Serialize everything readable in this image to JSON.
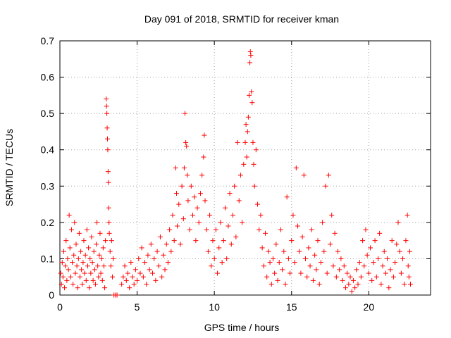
{
  "chart_data": {
    "type": "scatter",
    "title": "Day 091 of 2018, SRMTID for receiver kman",
    "xlabel": "GPS time / hours",
    "ylabel": "SRMTID / TECUs",
    "xlim": [
      0,
      24
    ],
    "ylim": [
      0,
      0.7
    ],
    "xticks": [
      0,
      5,
      10,
      15,
      20
    ],
    "yticks": [
      0,
      0.1,
      0.2,
      0.3,
      0.4,
      0.5,
      0.6,
      0.7
    ],
    "xtick_labels": [
      "0",
      "5",
      "10",
      "15",
      "20"
    ],
    "ytick_labels": [
      "0",
      "0.1",
      "0.2",
      "0.3",
      "0.4",
      "0.5",
      "0.6",
      "0.7"
    ],
    "grid": true,
    "marker": "+",
    "color": "#ff0000",
    "series": [
      {
        "name": "SRMTID",
        "points": [
          [
            0.05,
            0.06
          ],
          [
            0.1,
            0.03
          ],
          [
            0.15,
            0.09
          ],
          [
            0.2,
            0.05
          ],
          [
            0.25,
            0.12
          ],
          [
            0.3,
            0.02
          ],
          [
            0.35,
            0.08
          ],
          [
            0.4,
            0.15
          ],
          [
            0.45,
            0.04
          ],
          [
            0.5,
            0.1
          ],
          [
            0.55,
            0.07
          ],
          [
            0.6,
            0.22
          ],
          [
            0.65,
            0.13
          ],
          [
            0.7,
            0.05
          ],
          [
            0.75,
            0.18
          ],
          [
            0.8,
            0.09
          ],
          [
            0.85,
            0.03
          ],
          [
            0.9,
            0.11
          ],
          [
            0.95,
            0.2
          ],
          [
            1.0,
            0.06
          ],
          [
            1.05,
            0.14
          ],
          [
            1.1,
            0.08
          ],
          [
            1.15,
            0.02
          ],
          [
            1.2,
            0.1
          ],
          [
            1.25,
            0.17
          ],
          [
            1.3,
            0.05
          ],
          [
            1.35,
            0.12
          ],
          [
            1.4,
            0.07
          ],
          [
            1.45,
            0.03
          ],
          [
            1.5,
            0.09
          ],
          [
            1.55,
            0.15
          ],
          [
            1.6,
            0.06
          ],
          [
            1.65,
            0.11
          ],
          [
            1.7,
            0.04
          ],
          [
            1.75,
            0.18
          ],
          [
            1.8,
            0.08
          ],
          [
            1.85,
            0.13
          ],
          [
            1.9,
            0.02
          ],
          [
            1.95,
            0.1
          ],
          [
            2.0,
            0.06
          ],
          [
            2.05,
            0.16
          ],
          [
            2.1,
            0.09
          ],
          [
            2.15,
            0.04
          ],
          [
            2.2,
            0.12
          ],
          [
            2.25,
            0.07
          ],
          [
            2.3,
            0.03
          ],
          [
            2.35,
            0.14
          ],
          [
            2.4,
            0.2
          ],
          [
            2.45,
            0.08
          ],
          [
            2.5,
            0.05
          ],
          [
            2.55,
            0.11
          ],
          [
            2.6,
            0.17
          ],
          [
            2.65,
            0.06
          ],
          [
            2.7,
            0.1
          ],
          [
            2.75,
            0.04
          ],
          [
            2.8,
            0.13
          ],
          [
            2.85,
            0.08
          ],
          [
            2.9,
            0.02
          ],
          [
            2.95,
            0.15
          ],
          [
            3.0,
            0.54
          ],
          [
            3.02,
            0.52
          ],
          [
            3.04,
            0.5
          ],
          [
            3.06,
            0.46
          ],
          [
            3.08,
            0.43
          ],
          [
            3.1,
            0.4
          ],
          [
            3.12,
            0.34
          ],
          [
            3.14,
            0.31
          ],
          [
            3.16,
            0.24
          ],
          [
            3.18,
            0.2
          ],
          [
            3.2,
            0.17
          ],
          [
            3.25,
            0.12
          ],
          [
            3.3,
            0.08
          ],
          [
            3.35,
            0.15
          ],
          [
            3.4,
            0.05
          ],
          [
            3.45,
            0.1
          ],
          [
            3.5,
            0.0
          ],
          [
            3.6,
            0.0
          ],
          [
            3.7,
            0.0
          ],
          [
            4.0,
            0.03
          ],
          [
            4.1,
            0.05
          ],
          [
            4.2,
            0.08
          ],
          [
            4.3,
            0.04
          ],
          [
            4.4,
            0.06
          ],
          [
            4.5,
            0.02
          ],
          [
            4.6,
            0.09
          ],
          [
            4.7,
            0.05
          ],
          [
            4.8,
            0.03
          ],
          [
            4.9,
            0.07
          ],
          [
            5.0,
            0.04
          ],
          [
            5.1,
            0.1
          ],
          [
            5.2,
            0.06
          ],
          [
            5.3,
            0.13
          ],
          [
            5.4,
            0.05
          ],
          [
            5.5,
            0.09
          ],
          [
            5.6,
            0.03
          ],
          [
            5.7,
            0.11
          ],
          [
            5.8,
            0.07
          ],
          [
            5.9,
            0.14
          ],
          [
            6.0,
            0.06
          ],
          [
            6.1,
            0.1
          ],
          [
            6.2,
            0.04
          ],
          [
            6.3,
            0.12
          ],
          [
            6.4,
            0.08
          ],
          [
            6.5,
            0.16
          ],
          [
            6.6,
            0.05
          ],
          [
            6.7,
            0.11
          ],
          [
            6.8,
            0.07
          ],
          [
            6.9,
            0.14
          ],
          [
            7.0,
            0.09
          ],
          [
            7.1,
            0.18
          ],
          [
            7.2,
            0.12
          ],
          [
            7.3,
            0.22
          ],
          [
            7.4,
            0.15
          ],
          [
            7.5,
            0.35
          ],
          [
            7.55,
            0.28
          ],
          [
            7.6,
            0.19
          ],
          [
            7.7,
            0.25
          ],
          [
            7.8,
            0.14
          ],
          [
            7.9,
            0.3
          ],
          [
            8.0,
            0.21
          ],
          [
            8.05,
            0.35
          ],
          [
            8.1,
            0.5
          ],
          [
            8.15,
            0.42
          ],
          [
            8.2,
            0.41
          ],
          [
            8.25,
            0.33
          ],
          [
            8.3,
            0.26
          ],
          [
            8.4,
            0.18
          ],
          [
            8.5,
            0.3
          ],
          [
            8.6,
            0.22
          ],
          [
            8.7,
            0.27
          ],
          [
            8.8,
            0.15
          ],
          [
            8.9,
            0.24
          ],
          [
            9.0,
            0.2
          ],
          [
            9.1,
            0.28
          ],
          [
            9.2,
            0.33
          ],
          [
            9.3,
            0.38
          ],
          [
            9.35,
            0.44
          ],
          [
            9.4,
            0.26
          ],
          [
            9.5,
            0.18
          ],
          [
            9.6,
            0.12
          ],
          [
            9.7,
            0.22
          ],
          [
            9.8,
            0.08
          ],
          [
            9.9,
            0.15
          ],
          [
            10.0,
            0.1
          ],
          [
            10.1,
            0.18
          ],
          [
            10.2,
            0.06
          ],
          [
            10.3,
            0.13
          ],
          [
            10.4,
            0.2
          ],
          [
            10.5,
            0.09
          ],
          [
            10.6,
            0.15
          ],
          [
            10.7,
            0.24
          ],
          [
            10.8,
            0.1
          ],
          [
            10.9,
            0.19
          ],
          [
            11.0,
            0.28
          ],
          [
            11.1,
            0.14
          ],
          [
            11.2,
            0.22
          ],
          [
            11.3,
            0.3
          ],
          [
            11.4,
            0.16
          ],
          [
            11.5,
            0.42
          ],
          [
            11.6,
            0.26
          ],
          [
            11.7,
            0.33
          ],
          [
            11.8,
            0.2
          ],
          [
            11.9,
            0.36
          ],
          [
            12.0,
            0.42
          ],
          [
            12.05,
            0.47
          ],
          [
            12.1,
            0.38
          ],
          [
            12.15,
            0.45
          ],
          [
            12.2,
            0.49
          ],
          [
            12.25,
            0.55
          ],
          [
            12.3,
            0.64
          ],
          [
            12.33,
            0.67
          ],
          [
            12.36,
            0.66
          ],
          [
            12.4,
            0.56
          ],
          [
            12.45,
            0.53
          ],
          [
            12.5,
            0.42
          ],
          [
            12.55,
            0.36
          ],
          [
            12.6,
            0.3
          ],
          [
            12.7,
            0.4
          ],
          [
            12.8,
            0.25
          ],
          [
            12.9,
            0.18
          ],
          [
            13.0,
            0.22
          ],
          [
            13.1,
            0.13
          ],
          [
            13.2,
            0.08
          ],
          [
            13.3,
            0.17
          ],
          [
            13.4,
            0.05
          ],
          [
            13.5,
            0.12
          ],
          [
            13.6,
            0.09
          ],
          [
            13.7,
            0.03
          ],
          [
            13.8,
            0.1
          ],
          [
            13.9,
            0.06
          ],
          [
            14.0,
            0.14
          ],
          [
            14.1,
            0.04
          ],
          [
            14.2,
            0.09
          ],
          [
            14.3,
            0.18
          ],
          [
            14.4,
            0.07
          ],
          [
            14.5,
            0.12
          ],
          [
            14.6,
            0.03
          ],
          [
            14.7,
            0.27
          ],
          [
            14.8,
            0.1
          ],
          [
            14.9,
            0.06
          ],
          [
            15.0,
            0.15
          ],
          [
            15.1,
            0.22
          ],
          [
            15.2,
            0.09
          ],
          [
            15.3,
            0.35
          ],
          [
            15.4,
            0.19
          ],
          [
            15.5,
            0.12
          ],
          [
            15.6,
            0.06
          ],
          [
            15.7,
            0.16
          ],
          [
            15.8,
            0.33
          ],
          [
            15.9,
            0.1
          ],
          [
            16.0,
            0.05
          ],
          [
            16.1,
            0.13
          ],
          [
            16.2,
            0.08
          ],
          [
            16.3,
            0.18
          ],
          [
            16.4,
            0.04
          ],
          [
            16.5,
            0.11
          ],
          [
            16.6,
            0.07
          ],
          [
            16.7,
            0.15
          ],
          [
            16.8,
            0.03
          ],
          [
            16.9,
            0.09
          ],
          [
            17.0,
            0.2
          ],
          [
            17.1,
            0.12
          ],
          [
            17.2,
            0.3
          ],
          [
            17.3,
            0.06
          ],
          [
            17.4,
            0.33
          ],
          [
            17.5,
            0.14
          ],
          [
            17.6,
            0.22
          ],
          [
            17.7,
            0.08
          ],
          [
            17.8,
            0.17
          ],
          [
            17.9,
            0.05
          ],
          [
            18.0,
            0.12
          ],
          [
            18.1,
            0.07
          ],
          [
            18.2,
            0.1
          ],
          [
            18.3,
            0.04
          ],
          [
            18.4,
            0.08
          ],
          [
            18.5,
            0.02
          ],
          [
            18.6,
            0.06
          ],
          [
            18.7,
            0.03
          ],
          [
            18.8,
            0.05
          ],
          [
            18.9,
            0.01
          ],
          [
            19.0,
            0.04
          ],
          [
            19.1,
            0.02
          ],
          [
            19.2,
            0.07
          ],
          [
            19.3,
            0.03
          ],
          [
            19.4,
            0.09
          ],
          [
            19.5,
            0.05
          ],
          [
            19.6,
            0.15
          ],
          [
            19.7,
            0.08
          ],
          [
            19.8,
            0.18
          ],
          [
            19.9,
            0.11
          ],
          [
            20.0,
            0.06
          ],
          [
            20.1,
            0.13
          ],
          [
            20.2,
            0.04
          ],
          [
            20.3,
            0.09
          ],
          [
            20.4,
            0.15
          ],
          [
            20.5,
            0.05
          ],
          [
            20.6,
            0.1
          ],
          [
            20.7,
            0.17
          ],
          [
            20.8,
            0.03
          ],
          [
            20.9,
            0.08
          ],
          [
            21.0,
            0.12
          ],
          [
            21.1,
            0.06
          ],
          [
            21.2,
            0.1
          ],
          [
            21.3,
            0.02
          ],
          [
            21.4,
            0.07
          ],
          [
            21.5,
            0.15
          ],
          [
            21.6,
            0.05
          ],
          [
            21.7,
            0.09
          ],
          [
            21.8,
            0.14
          ],
          [
            21.9,
            0.2
          ],
          [
            22.0,
            0.12
          ],
          [
            22.1,
            0.06
          ],
          [
            22.2,
            0.1
          ],
          [
            22.3,
            0.03
          ],
          [
            22.4,
            0.15
          ],
          [
            22.5,
            0.22
          ],
          [
            22.55,
            0.08
          ],
          [
            22.6,
            0.05
          ],
          [
            22.65,
            0.12
          ],
          [
            22.7,
            0.03
          ]
        ]
      }
    ]
  }
}
